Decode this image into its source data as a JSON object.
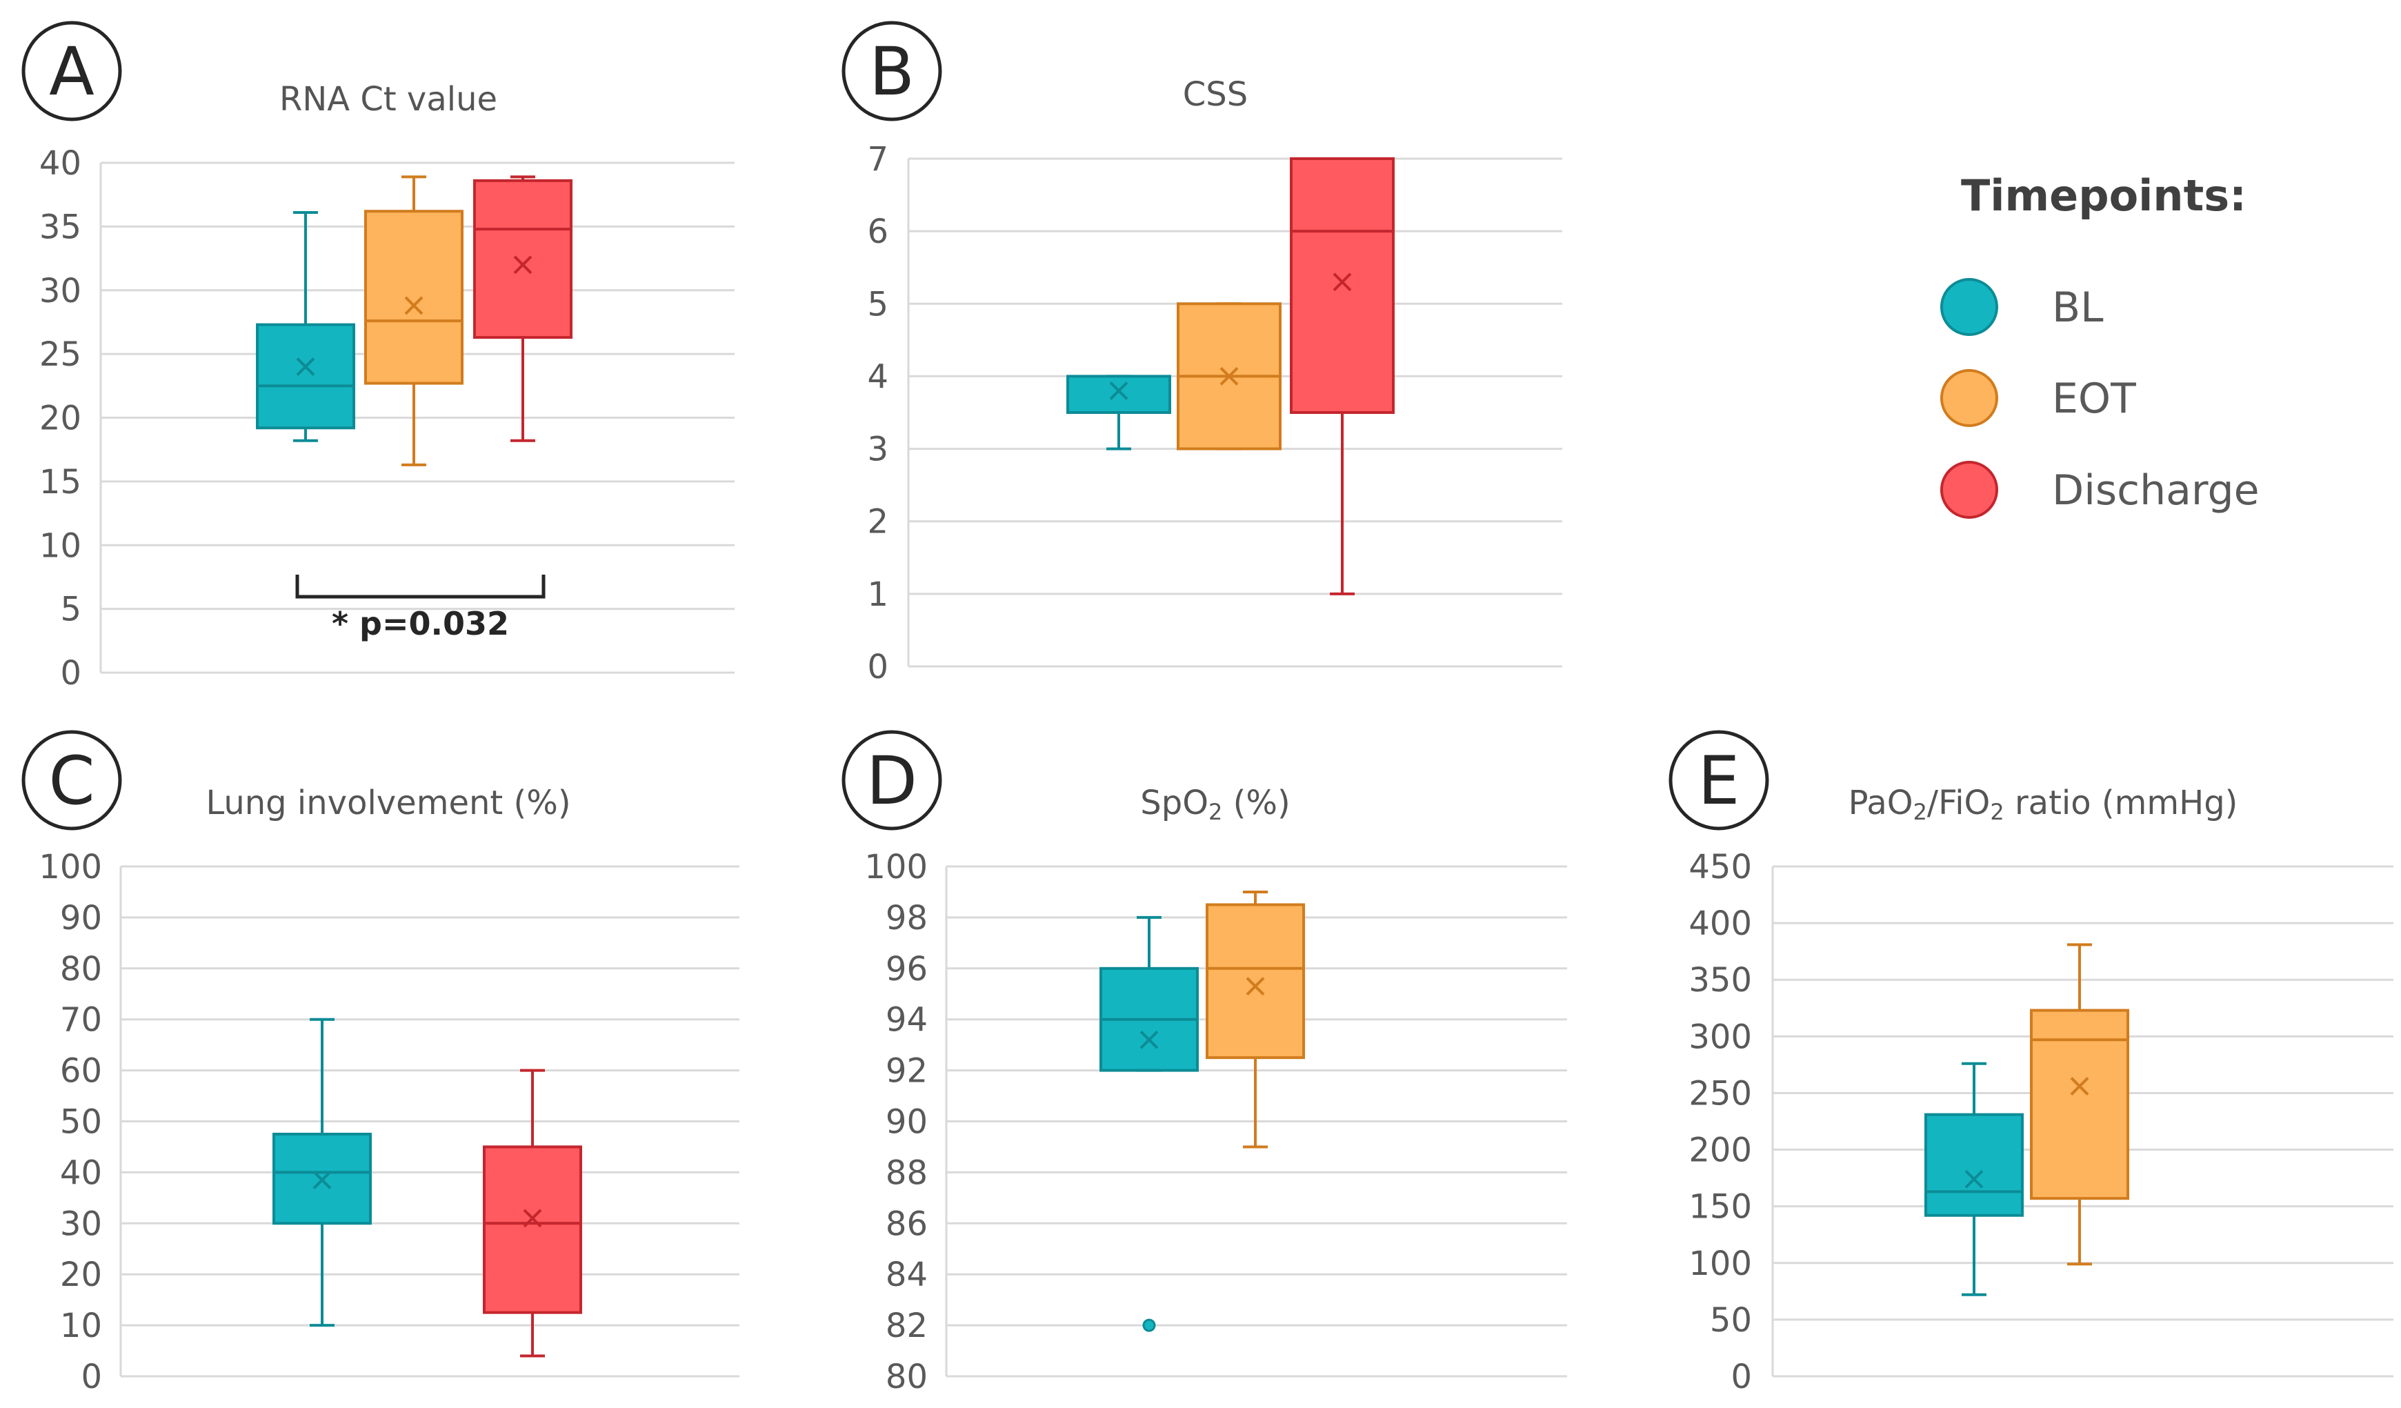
{
  "colors": {
    "BL": "#13B5C0",
    "BL_stroke": "#0C8C96",
    "EOT": "#FDB45C",
    "EOT_stroke": "#D17C1E",
    "Discharge": "#FF5A5F",
    "Discharge_stroke": "#C4262E"
  },
  "legend": {
    "title": "Timepoints:",
    "items": [
      "BL",
      "EOT",
      "Discharge"
    ]
  },
  "chart_data": [
    {
      "panel": "A",
      "type": "box",
      "title": "RNA Ct value",
      "ylim": [
        0,
        40
      ],
      "yticks": [
        0,
        5,
        10,
        15,
        20,
        25,
        30,
        35,
        40
      ],
      "series": [
        {
          "name": "BL",
          "min": 18.2,
          "q1": 19.2,
          "median": 22.5,
          "q3": 27.3,
          "max": 36.1,
          "mean": 24.0,
          "outliers": []
        },
        {
          "name": "EOT",
          "min": 16.3,
          "q1": 22.7,
          "median": 27.6,
          "q3": 36.2,
          "max": 38.9,
          "mean": 28.8,
          "outliers": []
        },
        {
          "name": "Discharge",
          "min": 18.2,
          "q1": 26.3,
          "median": 34.8,
          "q3": 38.6,
          "max": 38.9,
          "mean": 32.0,
          "outliers": []
        }
      ],
      "annotation": {
        "text": "* p=0.032",
        "from": "BL",
        "to": "Discharge"
      }
    },
    {
      "panel": "B",
      "type": "box",
      "title": "CSS",
      "ylim": [
        0,
        7
      ],
      "yticks": [
        0,
        1,
        2,
        3,
        4,
        5,
        6,
        7
      ],
      "series": [
        {
          "name": "BL",
          "min": 3.0,
          "q1": 3.5,
          "median": 3.5,
          "q3": 4.0,
          "max": 4.0,
          "mean": 3.8,
          "outliers": []
        },
        {
          "name": "EOT",
          "min": 3.0,
          "q1": 3.0,
          "median": 4.0,
          "q3": 5.0,
          "max": 5.0,
          "mean": 4.0,
          "outliers": []
        },
        {
          "name": "Discharge",
          "min": 1.0,
          "q1": 3.5,
          "median": 6.0,
          "q3": 7.0,
          "max": 7.0,
          "mean": 5.3,
          "outliers": []
        }
      ]
    },
    {
      "panel": "C",
      "type": "box",
      "title": "Lung involvement (%)",
      "ylim": [
        0,
        100
      ],
      "yticks": [
        0,
        10,
        20,
        30,
        40,
        50,
        60,
        70,
        80,
        90,
        100
      ],
      "series": [
        {
          "name": "BL",
          "min": 10,
          "q1": 30,
          "median": 40,
          "q3": 47.5,
          "max": 70,
          "mean": 38.5,
          "outliers": []
        },
        {
          "name": "Discharge",
          "min": 4,
          "q1": 12.5,
          "median": 30,
          "q3": 45,
          "max": 60,
          "mean": 31,
          "outliers": []
        }
      ]
    },
    {
      "panel": "D",
      "type": "box",
      "title": "SpO",
      "title_sub": "2",
      "title_suffix": " (%)",
      "ylim": [
        80,
        100
      ],
      "yticks": [
        80,
        82,
        84,
        86,
        88,
        90,
        92,
        94,
        96,
        98,
        100
      ],
      "series": [
        {
          "name": "BL",
          "min": 92,
          "q1": 92,
          "median": 94,
          "q3": 96,
          "max": 98,
          "mean": 93.2,
          "outliers": [
            82
          ]
        },
        {
          "name": "EOT",
          "min": 89,
          "q1": 92.5,
          "median": 96,
          "q3": 98.5,
          "max": 99,
          "mean": 95.3,
          "outliers": []
        }
      ]
    },
    {
      "panel": "E",
      "type": "box",
      "title": "PaO",
      "title_sub": "2",
      "title_mid": "/FiO",
      "title_sub2": "2",
      "title_suffix": " ratio (mmHg)",
      "ylim": [
        0,
        450
      ],
      "yticks": [
        0,
        50,
        100,
        150,
        200,
        250,
        300,
        350,
        400,
        450
      ],
      "series": [
        {
          "name": "BL",
          "min": 72,
          "q1": 142,
          "median": 163,
          "q3": 231,
          "max": 276,
          "mean": 174,
          "outliers": []
        },
        {
          "name": "EOT",
          "min": 99,
          "q1": 157,
          "median": 297,
          "q3": 323,
          "max": 381,
          "mean": 256,
          "outliers": []
        }
      ]
    }
  ]
}
